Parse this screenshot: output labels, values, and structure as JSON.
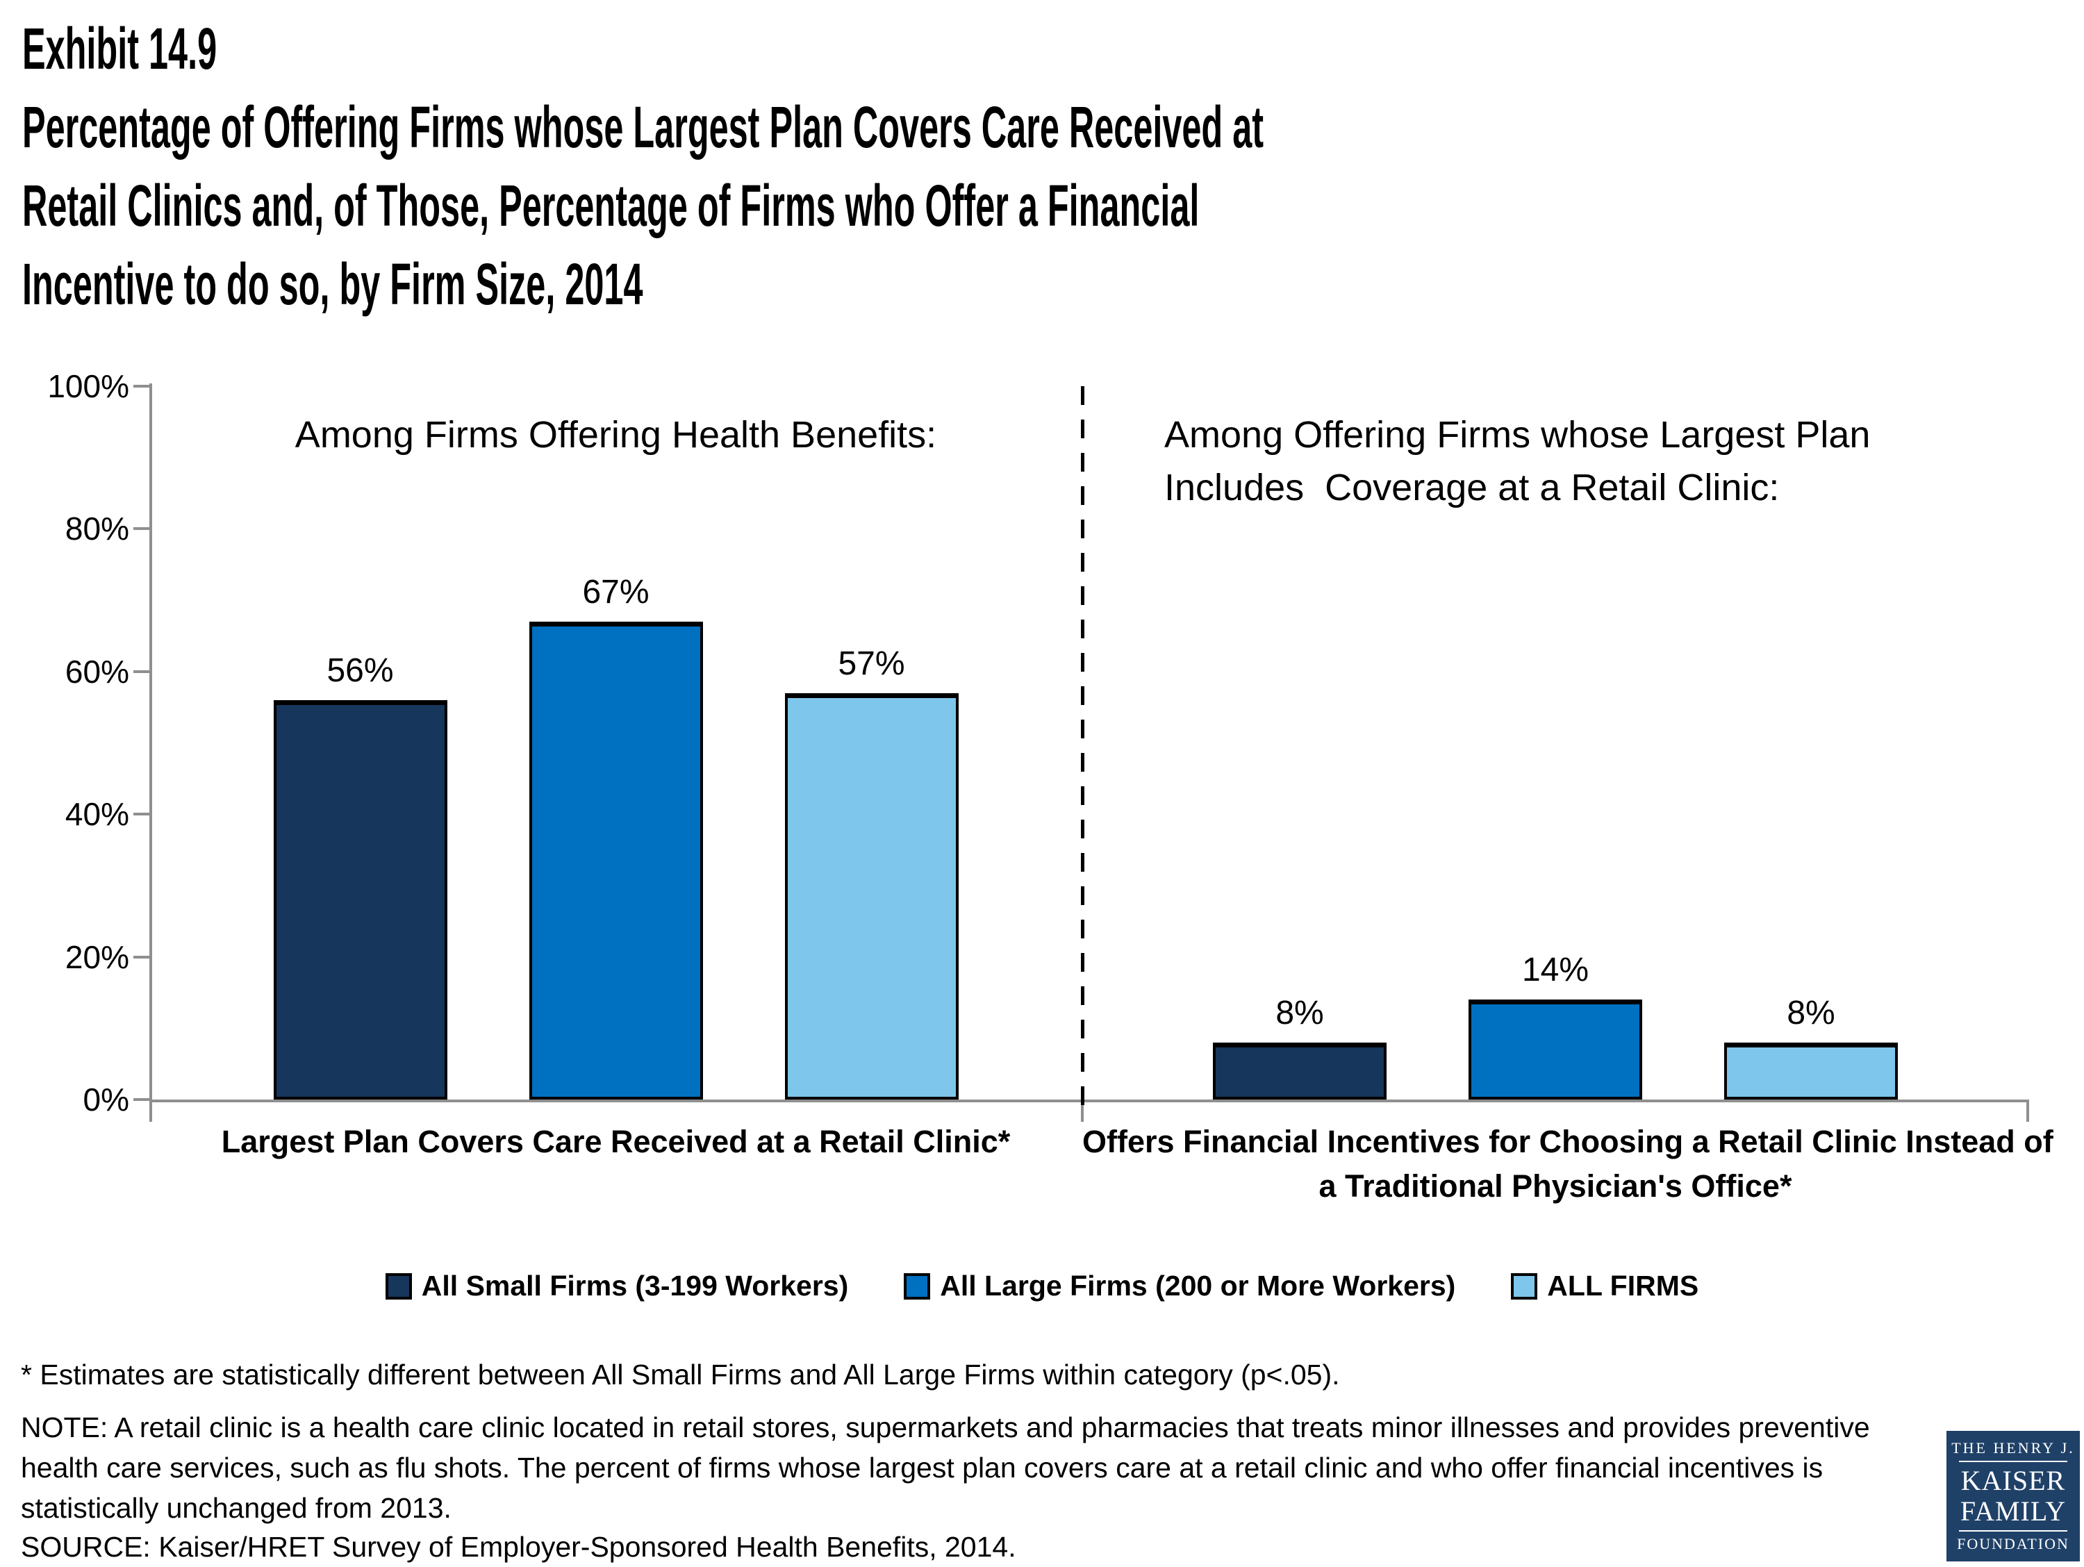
{
  "title": {
    "exhibit": "Exhibit 14.9",
    "lines": [
      "Percentage of Offering Firms whose Largest Plan Covers Care Received at",
      "Retail Clinics and, of Those, Percentage of Firms who Offer a Financial",
      "Incentive to do so, by Firm Size, 2014"
    ]
  },
  "chart_data": {
    "type": "bar",
    "title": "Percentage of Offering Firms whose Largest Plan Covers Care Received at Retail Clinics and, of Those, Percentage of Firms who Offer a Financial Incentive to do so, by Firm Size, 2014",
    "ylim": [
      0,
      100
    ],
    "ytick_labels": [
      "100%",
      "80%",
      "60%",
      "40%",
      "20%",
      "0%"
    ],
    "grid": false,
    "legend_position": "bottom",
    "axis_color": "#8f8f8f",
    "divider_style": "dashed-black-vertical",
    "series": [
      {
        "name": "All Small Firms (3-199 Workers)",
        "color": "#16365C"
      },
      {
        "name": "All Large Firms (200 or More Workers)",
        "color": "#0070C0"
      },
      {
        "name": "ALL FIRMS",
        "color": "#7EC6EC"
      }
    ],
    "panels": [
      {
        "header_lines": [
          "Among Firms Offering Health Benefits:"
        ],
        "category_lines": [
          "Largest Plan Covers Care Received at a Retail Clinic*"
        ],
        "values": [
          56,
          67,
          57
        ],
        "value_labels": [
          "56%",
          "67%",
          "57%"
        ]
      },
      {
        "header_lines": [
          "Among Offering Firms whose Largest Plan",
          "Includes  Coverage at a Retail Clinic:"
        ],
        "category_lines": [
          "Offers Financial Incentives for Choosing a Retail Clinic Instead of",
          "a Traditional Physician's Office*"
        ],
        "values": [
          8,
          14,
          8
        ],
        "value_labels": [
          "8%",
          "14%",
          "8%"
        ]
      }
    ]
  },
  "footnotes": {
    "significance": "* Estimates are statistically different between All Small Firms and All Large Firms within category (p<.05).",
    "note_lines": [
      "NOTE: A retail clinic is a health care clinic located in retail stores, supermarkets and pharmacies that treats minor illnesses and provides preventive",
      "health care services, such as flu shots. The percent of firms whose largest plan covers care at a retail clinic and who offer financial incentives is",
      "statistically unchanged from 2013."
    ],
    "source": "SOURCE: Kaiser/HRET Survey of Employer-Sponsored Health Benefits, 2014."
  },
  "logo": {
    "background": "#1F4168",
    "line1": "THE HENRY J.",
    "line2": "KAISER",
    "line3": "FAMILY",
    "line4": "FOUNDATION"
  }
}
